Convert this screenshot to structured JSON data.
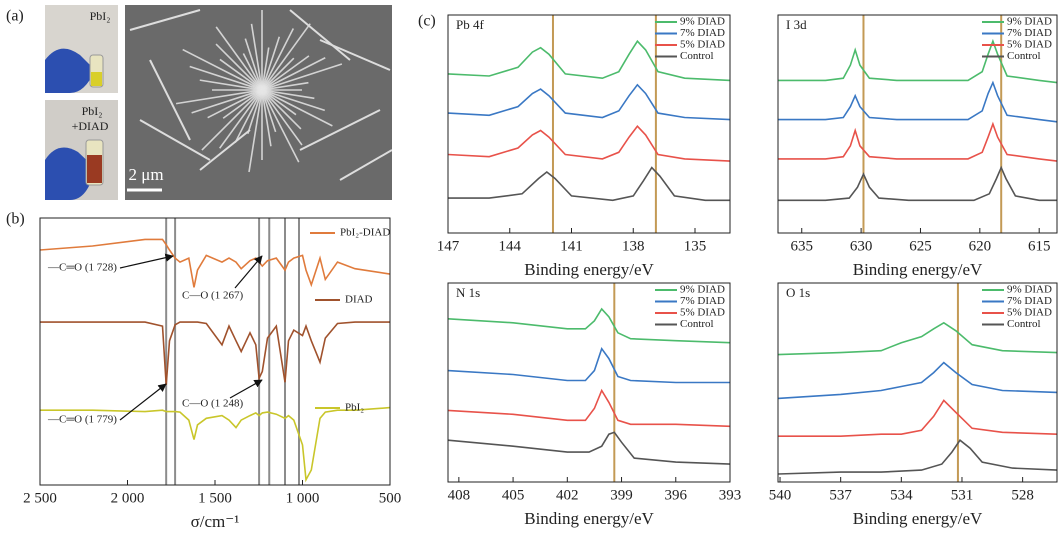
{
  "panel_labels": [
    "(a)",
    "(b)",
    "(c)"
  ],
  "photos": {
    "top_label": "PbI₂",
    "bottom_label": [
      "PbI₂",
      "+DIAD"
    ],
    "scale_bar": "2 μm"
  },
  "chart_data": [
    {
      "type": "line",
      "xlabel": "σ/cm⁻¹",
      "xlim": [
        2500,
        500
      ],
      "xticks": [
        {
          "value": 2500,
          "label": "2 500"
        },
        {
          "value": 2000,
          "label": "2 000"
        },
        {
          "value": 1500,
          "label": "1 500"
        },
        {
          "value": 1000,
          "label": "1 000"
        },
        500
      ],
      "ylim": [
        0,
        100
      ],
      "x": [
        2500,
        2200,
        1900,
        1800,
        1779,
        1760,
        1728,
        1700,
        1650,
        1620,
        1600,
        1550,
        1460,
        1420,
        1380,
        1350,
        1300,
        1267,
        1248,
        1230,
        1200,
        1150,
        1100,
        1080,
        1050,
        1000,
        980,
        950,
        900,
        870,
        800,
        700,
        500
      ],
      "series": [
        {
          "name": "PbI₂-DIAD",
          "color": "#e07b3c",
          "values": [
            88,
            89.5,
            92,
            92,
            90,
            88,
            85,
            83.5,
            85,
            74,
            80.5,
            86,
            83.5,
            85,
            83.5,
            81,
            84,
            85,
            83.5,
            82,
            84,
            85,
            80.5,
            83.5,
            85,
            86,
            80.5,
            75,
            85,
            77,
            83.5,
            81,
            79
          ]
        },
        {
          "name": "DIAD",
          "color": "#a0522d",
          "values": [
            61,
            61,
            61,
            59.5,
            37.5,
            54,
            60,
            61,
            61,
            61,
            61,
            60.5,
            52.5,
            59.5,
            54,
            50,
            57,
            52.5,
            40,
            42.5,
            55,
            59.5,
            38.5,
            54,
            58,
            56,
            59.5,
            54,
            46,
            55,
            60.5,
            61,
            61
          ]
        },
        {
          "name": "PbI₂",
          "color": "#c9c62a",
          "values": [
            28,
            28,
            27.5,
            28,
            27.5,
            27.5,
            27.5,
            27.3,
            24.3,
            17,
            22.5,
            25,
            26,
            24.3,
            21.5,
            24.3,
            26,
            27,
            26,
            27,
            27.3,
            26.5,
            25,
            26,
            24.3,
            15,
            2,
            5.6,
            25,
            27.3,
            28,
            28,
            29
          ]
        }
      ],
      "reference_lines": [
        1779,
        1728,
        1248,
        1190,
        1100,
        1020
      ],
      "reference_color": "#8c8c8c",
      "annotations": [
        "—C═O (1 728)",
        "C—O (1 267)",
        "—C═O (1 779)",
        "C—O (1 248)"
      ]
    },
    {
      "type": "line",
      "title": "Pb 4f",
      "xlabel": "Binding energy/eV",
      "xlim": [
        147,
        133.3
      ],
      "xticks": [
        147,
        144,
        141,
        138,
        135
      ],
      "ylim": [
        0,
        100
      ],
      "reference_lines": [
        141.9,
        136.9
      ],
      "reference_color": "#c39a55",
      "series": [
        {
          "name": "9% DIAD",
          "color": "#4cbb6c",
          "x": [
            147,
            145,
            143.6,
            142.9,
            142.5,
            142.1,
            141.3,
            139.5,
            138.7,
            138.2,
            137.8,
            137.4,
            136.8,
            135.5,
            133.3
          ],
          "values": [
            73,
            72,
            76,
            83,
            85,
            82,
            73,
            71,
            74,
            82,
            88,
            84,
            74,
            71,
            70
          ]
        },
        {
          "name": "7% DIAD",
          "color": "#3a78c4",
          "x": [
            147,
            145,
            143.6,
            142.9,
            142.5,
            142.1,
            141.3,
            139.5,
            138.7,
            138.2,
            137.8,
            137.4,
            136.8,
            135.5,
            133.3
          ],
          "values": [
            55,
            54,
            58,
            64,
            66,
            63,
            55,
            53,
            56,
            63,
            68,
            64,
            55,
            53,
            52
          ]
        },
        {
          "name": "5% DIAD",
          "color": "#e8524a",
          "x": [
            147,
            145,
            143.6,
            142.9,
            142.5,
            142.1,
            141.3,
            139.5,
            138.7,
            138.2,
            137.8,
            137.4,
            136.8,
            135.5,
            133.3
          ],
          "values": [
            36,
            35,
            39,
            45,
            47,
            44,
            36,
            34,
            37,
            44,
            49,
            45,
            36,
            34,
            33
          ]
        },
        {
          "name": "Control",
          "color": "#555555",
          "x": [
            147,
            145,
            143.4,
            142.6,
            142.2,
            141.8,
            141,
            139,
            138,
            137.5,
            137.1,
            136.7,
            136,
            134.5,
            133.3
          ],
          "values": [
            16,
            16,
            18,
            25,
            28,
            25,
            17,
            15,
            17,
            24,
            30,
            26,
            17,
            15,
            15
          ]
        }
      ]
    },
    {
      "type": "line",
      "title": "I 3d",
      "xlabel": "Binding energy/eV",
      "xlim": [
        637,
        613.5
      ],
      "xticks": [
        635,
        630,
        625,
        620,
        615
      ],
      "ylim": [
        0,
        100
      ],
      "reference_lines": [
        629.8,
        618.2
      ],
      "reference_color": "#c39a55",
      "series": [
        {
          "name": "9% DIAD",
          "color": "#4cbb6c",
          "x": [
            637,
            633,
            631.5,
            630.9,
            630.5,
            630.1,
            629.3,
            627,
            621,
            619.8,
            619.3,
            618.9,
            618.5,
            617.7,
            615,
            613.5
          ],
          "values": [
            70,
            70,
            71,
            77,
            84,
            77,
            71,
            70,
            70,
            74,
            82,
            88,
            82,
            72,
            70,
            69
          ]
        },
        {
          "name": "7% DIAD",
          "color": "#3a78c4",
          "x": [
            637,
            633,
            631.5,
            630.9,
            630.5,
            630.1,
            629.3,
            627,
            621,
            619.8,
            619.3,
            618.9,
            618.5,
            617.7,
            615,
            613.5
          ],
          "values": [
            52,
            52,
            53,
            58,
            63,
            58,
            53,
            52,
            52,
            56,
            64,
            69,
            63,
            54,
            52,
            51
          ]
        },
        {
          "name": "5% DIAD",
          "color": "#e8524a",
          "x": [
            637,
            633,
            631.5,
            630.9,
            630.5,
            630.1,
            629.3,
            627,
            621,
            619.8,
            619.3,
            618.9,
            618.5,
            617.7,
            615,
            613.5
          ],
          "values": [
            34,
            34,
            35,
            40,
            47,
            40,
            35,
            34,
            34,
            37,
            44,
            50,
            44,
            36,
            34,
            33
          ]
        },
        {
          "name": "Control",
          "color": "#555555",
          "x": [
            637,
            633,
            631,
            630.3,
            629.8,
            629.3,
            628.5,
            626,
            620.5,
            619.2,
            618.6,
            618.2,
            617.8,
            617,
            615,
            613.5
          ],
          "values": [
            15,
            15,
            16,
            21,
            27,
            21,
            16,
            15,
            15,
            18,
            25,
            30,
            25,
            17,
            15,
            15
          ]
        }
      ]
    },
    {
      "type": "line",
      "title": "N 1s",
      "xlabel": "Binding energy/eV",
      "xlim": [
        408.6,
        393
      ],
      "xticks": [
        408,
        405,
        402,
        399,
        396,
        393
      ],
      "ylim": [
        0,
        100
      ],
      "reference_lines": [
        399.4
      ],
      "reference_color": "#c39a55",
      "series": [
        {
          "name": "9% DIAD",
          "color": "#4cbb6c",
          "x": [
            408.6,
            405,
            402,
            401,
            400.5,
            400.1,
            399.7,
            399.2,
            398.5,
            396,
            393
          ],
          "values": [
            82,
            80,
            77,
            77,
            81,
            87,
            83,
            75,
            72,
            71,
            70
          ]
        },
        {
          "name": "7% DIAD",
          "color": "#3a78c4",
          "x": [
            408.6,
            405,
            402,
            401,
            400.5,
            400.1,
            399.7,
            399.2,
            398.5,
            396,
            393
          ],
          "values": [
            56,
            54,
            51,
            51,
            56,
            67,
            62,
            53,
            51,
            50,
            50
          ]
        },
        {
          "name": "5% DIAD",
          "color": "#e8524a",
          "x": [
            408.6,
            405,
            402,
            401,
            400.5,
            400.1,
            399.7,
            399.2,
            398.5,
            396,
            393
          ],
          "values": [
            36,
            34,
            31,
            31,
            37,
            46,
            40,
            31,
            29,
            29,
            28
          ]
        },
        {
          "name": "Control",
          "color": "#555555",
          "x": [
            408.6,
            405,
            402,
            400.8,
            400.1,
            399.7,
            399.4,
            399,
            398.3,
            396,
            393
          ],
          "values": [
            21,
            18,
            15,
            15,
            18,
            24,
            25,
            20,
            12,
            10,
            9
          ]
        }
      ]
    },
    {
      "type": "line",
      "title": "O 1s",
      "xlabel": "Binding energy/eV",
      "xlim": [
        540.1,
        526.3
      ],
      "xticks": [
        540,
        537,
        534,
        531,
        528
      ],
      "ylim": [
        0,
        100
      ],
      "reference_lines": [
        531.2
      ],
      "reference_color": "#c39a55",
      "series": [
        {
          "name": "9% DIAD",
          "color": "#4cbb6c",
          "x": [
            540.1,
            537,
            535,
            534,
            533,
            532.4,
            531.9,
            531.3,
            530.5,
            529,
            526.3
          ],
          "values": [
            64,
            65,
            66,
            70,
            73,
            77,
            80,
            76,
            69,
            66,
            65
          ]
        },
        {
          "name": "7% DIAD",
          "color": "#3a78c4",
          "x": [
            540.1,
            537,
            535,
            534,
            533,
            532.4,
            531.9,
            531.3,
            530.5,
            529,
            526.3
          ],
          "values": [
            42,
            44,
            46,
            48,
            50,
            55,
            60,
            55,
            49,
            46,
            45
          ]
        },
        {
          "name": "5% DIAD",
          "color": "#e8524a",
          "x": [
            540.1,
            537,
            535,
            534,
            533,
            532.4,
            531.9,
            531.3,
            530.5,
            529,
            526.3
          ],
          "values": [
            23,
            23,
            24,
            24,
            26,
            33,
            41,
            35,
            27,
            25,
            24
          ]
        },
        {
          "name": "Control",
          "color": "#555555",
          "x": [
            540.1,
            537,
            535,
            533,
            532,
            531.5,
            531.1,
            530.6,
            530,
            528.5,
            526.3
          ],
          "values": [
            4,
            5,
            5,
            6,
            9,
            15,
            21,
            17,
            10,
            7,
            6
          ]
        }
      ]
    }
  ]
}
